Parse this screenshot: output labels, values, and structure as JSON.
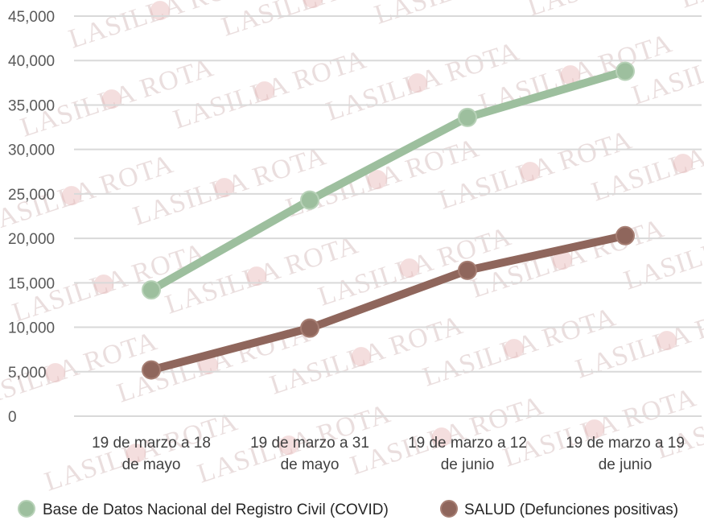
{
  "watermark": {
    "text": "LASILLA ROTA"
  },
  "chart_data": {
    "type": "line",
    "title": "",
    "xlabel": "",
    "ylabel": "",
    "categories": [
      [
        "19 de marzo a 18",
        "de mayo"
      ],
      [
        "19 de marzo a 31",
        "de mayo"
      ],
      [
        "19 de marzo a 12",
        "de junio"
      ],
      [
        "19 de marzo a 19",
        "de junio"
      ]
    ],
    "ylim": [
      0,
      45000
    ],
    "yticks": [
      0,
      5000,
      10000,
      15000,
      20000,
      25000,
      30000,
      35000,
      40000,
      45000
    ],
    "ytick_labels": [
      "0",
      "5,000",
      "10,000",
      "15,000",
      "20,000",
      "25,000",
      "30,000",
      "35,000",
      "40,000",
      "45,000"
    ],
    "grid": true,
    "legend_position": "bottom",
    "series": [
      {
        "name": "Base de Datos Nacional del Registro Civil (COVID)",
        "values": [
          14200,
          24300,
          33600,
          38800
        ],
        "color": "#9dbf9e"
      },
      {
        "name": "SALUD (Defunciones positivas)",
        "values": [
          5200,
          9900,
          16400,
          20300
        ],
        "color": "#8f665c"
      }
    ]
  }
}
